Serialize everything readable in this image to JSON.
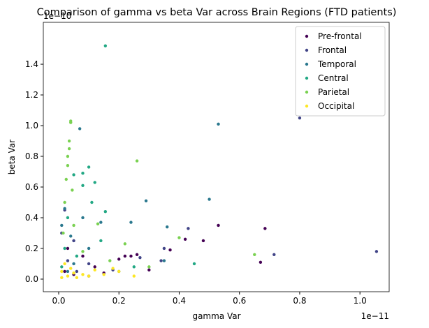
{
  "chart_data": {
    "type": "scatter",
    "title": "Comparison of gamma vs beta Var across Brain Regions (FTD patients)",
    "x_label": "gamma Var",
    "y_label": "beta Var",
    "x_offset": "1e−11",
    "y_offset": "1e−10",
    "xlim": [
      -0.051,
      1.097
    ],
    "ylim": [
      -0.082,
      1.673
    ],
    "xticks": [
      {
        "value": 0,
        "label": "0.0"
      },
      0.2,
      0.4,
      0.6,
      0.8,
      {
        "value": 1,
        "label": "1.0"
      }
    ],
    "yticks": [
      {
        "value": 0,
        "label": "0.0"
      },
      0.2,
      0.4,
      0.6,
      0.8,
      {
        "value": 1,
        "label": "1.0"
      },
      1.2,
      1.4
    ],
    "grid": false,
    "legend": "upper right",
    "series": [
      {
        "name": "Pre-frontal",
        "color": "#440154",
        "x": [
          0.53,
          0.685,
          0.48,
          0.42,
          0.37,
          0.3,
          0.26,
          0.2,
          0.67,
          0.02,
          0.05,
          0.1,
          0.15,
          0.22,
          0.12,
          0.08,
          0.03,
          0.24
        ],
        "values": [
          0.35,
          0.33,
          0.25,
          0.26,
          0.19,
          0.06,
          0.16,
          0.13,
          0.11,
          0.05,
          0.03,
          0.02,
          0.04,
          0.15,
          0.08,
          0.15,
          0.2,
          0.15
        ]
      },
      {
        "name": "Frontal",
        "color": "#414487",
        "x": [
          1.055,
          0.715,
          0.8,
          0.34,
          0.43,
          0.35,
          0.27,
          0.01,
          0.02,
          0.05,
          0.1,
          0.18,
          0.06,
          0.03
        ],
        "values": [
          0.18,
          0.16,
          1.05,
          0.12,
          0.33,
          0.2,
          0.14,
          0.3,
          0.45,
          0.25,
          0.1,
          0.06,
          0.05,
          0.12
        ]
      },
      {
        "name": "Temporal",
        "color": "#2a788e",
        "x": [
          0.53,
          0.5,
          0.29,
          0.36,
          0.24,
          0.07,
          0.14,
          0.02,
          0.01,
          0.04,
          0.08,
          0.1,
          0.05,
          0.2,
          0.03,
          0.35
        ],
        "values": [
          1.01,
          0.52,
          0.51,
          0.34,
          0.37,
          0.98,
          0.37,
          0.46,
          0.35,
          0.28,
          0.4,
          0.2,
          0.1,
          0.05,
          0.05,
          0.12
        ]
      },
      {
        "name": "Central",
        "color": "#22a884",
        "x": [
          0.155,
          0.1,
          0.05,
          0.08,
          0.12,
          0.08,
          0.11,
          0.155,
          0.45,
          0.03,
          0.02,
          0.06,
          0.14,
          0.25,
          0.01
        ],
        "values": [
          1.52,
          0.73,
          0.68,
          0.69,
          0.63,
          0.61,
          0.5,
          0.44,
          0.1,
          0.4,
          0.2,
          0.15,
          0.25,
          0.08,
          0.08
        ]
      },
      {
        "name": "Parietal",
        "color": "#7ad151",
        "x": [
          0.04,
          0.04,
          0.035,
          0.035,
          0.03,
          0.03,
          0.26,
          0.025,
          0.045,
          0.02,
          0.65,
          0.4,
          0.22,
          0.13,
          0.05,
          0.17,
          0.08,
          0.3,
          0.015
        ],
        "values": [
          1.03,
          1.02,
          0.9,
          0.85,
          0.8,
          0.74,
          0.77,
          0.65,
          0.58,
          0.5,
          0.16,
          0.27,
          0.23,
          0.36,
          0.35,
          0.12,
          0.18,
          0.08,
          0.3
        ]
      },
      {
        "name": "Occipital",
        "color": "#fde725",
        "x": [
          0.01,
          0.03,
          0.06,
          0.1,
          0.15,
          0.2,
          0.12,
          0.05,
          0.02,
          0.08,
          0.18,
          0.25,
          0.01,
          0.04
        ],
        "values": [
          0.01,
          0.02,
          0.01,
          0.02,
          0.03,
          0.05,
          0.06,
          0.04,
          0.1,
          0.03,
          0.07,
          0.02,
          0.05,
          0.07
        ]
      }
    ]
  }
}
